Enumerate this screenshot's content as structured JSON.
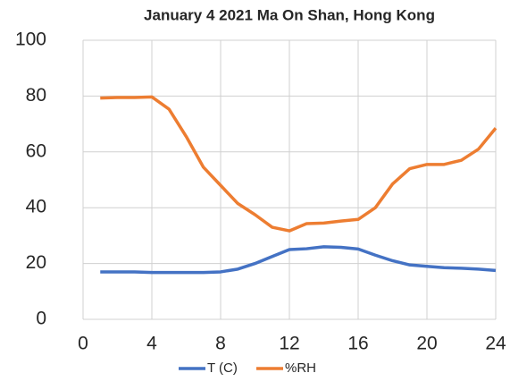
{
  "chart_data": {
    "type": "line",
    "title": "January 4 2021  Ma On Shan, Hong Kong",
    "x": [
      1,
      2,
      3,
      4,
      5,
      6,
      7,
      8,
      9,
      10,
      11,
      12,
      13,
      14,
      15,
      16,
      17,
      18,
      19,
      20,
      21,
      22,
      23,
      24
    ],
    "series": [
      {
        "name": "T (C)",
        "color": "#4472c4",
        "values": [
          17,
          17,
          17,
          16.8,
          16.8,
          16.8,
          16.8,
          17,
          18,
          20,
          22.5,
          25,
          25.3,
          26,
          25.8,
          25.2,
          23,
          21,
          19.5,
          19,
          18.5,
          18.3,
          18,
          17.5
        ]
      },
      {
        "name": "%RH",
        "color": "#ed7d31",
        "values": [
          79.3,
          79.5,
          79.5,
          79.7,
          75.3,
          65.5,
          54.5,
          48,
          41.5,
          37.5,
          33,
          31.7,
          34.3,
          34.5,
          35.2,
          35.8,
          40,
          48.5,
          54,
          55.5,
          55.5,
          57,
          61,
          68.5
        ]
      }
    ],
    "xlim": [
      0,
      24
    ],
    "xticks": [
      0,
      4,
      8,
      12,
      16,
      20,
      24
    ],
    "ylim": [
      0,
      100
    ],
    "yticks": [
      0,
      20,
      40,
      60,
      80,
      100
    ],
    "grid": true,
    "legend": "bottom"
  }
}
